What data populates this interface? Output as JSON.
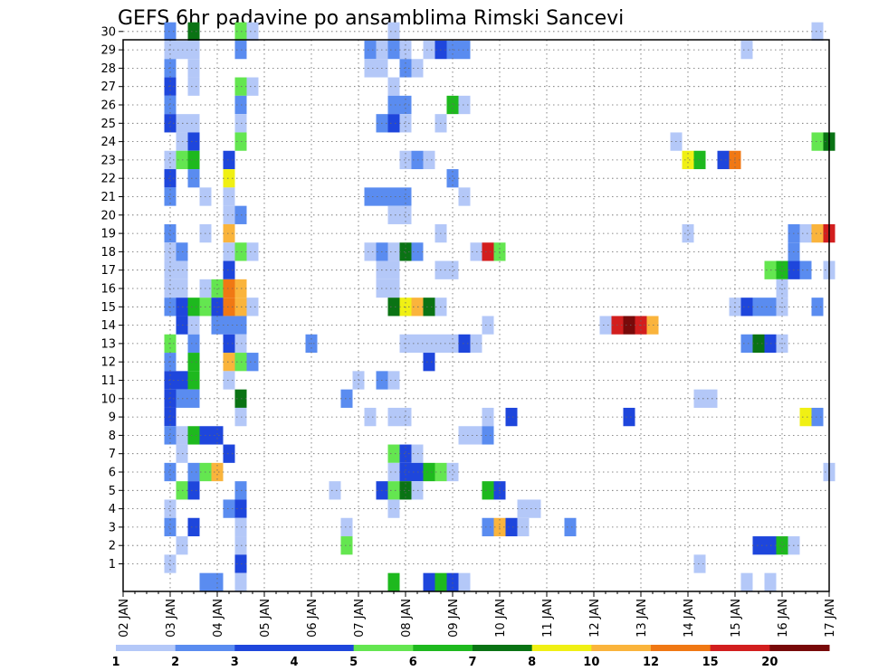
{
  "chart_data": {
    "type": "heatmap",
    "title": "GEFS 6hr padavine po ansamblima Rimski Sancevi",
    "x_tick_labels": [
      "02 JAN",
      "03 JAN",
      "04 JAN",
      "05 JAN",
      "06 JAN",
      "07 JAN",
      "08 JAN",
      "09 JAN",
      "10 JAN",
      "11 JAN",
      "12 JAN",
      "13 JAN",
      "14 JAN",
      "15 JAN",
      "16 JAN",
      "17 JAN"
    ],
    "y_tick_labels": [
      "1",
      "2",
      "3",
      "4",
      "5",
      "6",
      "7",
      "8",
      "9",
      "10",
      "11",
      "12",
      "13",
      "14",
      "15",
      "16",
      "17",
      "18",
      "19",
      "20",
      "21",
      "22",
      "23",
      "24",
      "25",
      "26",
      "27",
      "28",
      "29",
      "30"
    ],
    "y_range": [
      0,
      30
    ],
    "x_steps_per_day": 4,
    "n_steps": 60,
    "grid": true,
    "legend": {
      "position": "bottom",
      "labels": [
        "1",
        "2",
        "3",
        "4",
        "5",
        "6",
        "7",
        "8",
        "10",
        "12",
        "15",
        "20"
      ],
      "colors": [
        "#b4c8f8",
        "#5a8cf0",
        "#1e46dc",
        "#1e46dc",
        "#64e650",
        "#1eb91e",
        "#0a7314",
        "#f0f014",
        "#fab43c",
        "#f07814",
        "#d21e1e",
        "#780a0a"
      ]
    },
    "color_levels": {
      "1": "#b4c8f8",
      "2": "#5a8cf0",
      "3": "#1e46dc",
      "4": "#64e650",
      "5": "#1eb91e",
      "6": "#0a7314",
      "7": "#f0f014",
      "8": "#fab43c",
      "9": "#f07814",
      "10": "#d21e1e",
      "11": "#780a0a"
    },
    "cells": [
      [
        4,
        30,
        2
      ],
      [
        6,
        30,
        6
      ],
      [
        10,
        30,
        4
      ],
      [
        11,
        30,
        1
      ],
      [
        23,
        30,
        1
      ],
      [
        59,
        30,
        1
      ],
      [
        4,
        29,
        1
      ],
      [
        5,
        29,
        1
      ],
      [
        6,
        29,
        1
      ],
      [
        10,
        29,
        2
      ],
      [
        21,
        29,
        2
      ],
      [
        22,
        29,
        1
      ],
      [
        23,
        29,
        2
      ],
      [
        24,
        29,
        1
      ],
      [
        26,
        29,
        1
      ],
      [
        27,
        29,
        3
      ],
      [
        28,
        29,
        2
      ],
      [
        29,
        29,
        2
      ],
      [
        53,
        29,
        1
      ],
      [
        4,
        28,
        2
      ],
      [
        6,
        28,
        1
      ],
      [
        21,
        28,
        1
      ],
      [
        22,
        28,
        1
      ],
      [
        24,
        28,
        2
      ],
      [
        25,
        28,
        1
      ],
      [
        4,
        27,
        3
      ],
      [
        6,
        27,
        1
      ],
      [
        10,
        27,
        4
      ],
      [
        11,
        27,
        1
      ],
      [
        23,
        27,
        1
      ],
      [
        4,
        26,
        2
      ],
      [
        10,
        26,
        2
      ],
      [
        23,
        26,
        2
      ],
      [
        24,
        26,
        2
      ],
      [
        28,
        26,
        5
      ],
      [
        29,
        26,
        1
      ],
      [
        4,
        25,
        3
      ],
      [
        5,
        25,
        1
      ],
      [
        6,
        25,
        1
      ],
      [
        10,
        25,
        1
      ],
      [
        22,
        25,
        2
      ],
      [
        23,
        25,
        3
      ],
      [
        24,
        25,
        1
      ],
      [
        27,
        25,
        1
      ],
      [
        5,
        24,
        1
      ],
      [
        6,
        24,
        3
      ],
      [
        10,
        24,
        4
      ],
      [
        47,
        24,
        1
      ],
      [
        59,
        24,
        4
      ],
      [
        60,
        24,
        6
      ],
      [
        4,
        23,
        1
      ],
      [
        5,
        23,
        4
      ],
      [
        6,
        23,
        5
      ],
      [
        9,
        23,
        3
      ],
      [
        24,
        23,
        1
      ],
      [
        25,
        23,
        2
      ],
      [
        26,
        23,
        1
      ],
      [
        48,
        23,
        7
      ],
      [
        49,
        23,
        5
      ],
      [
        51,
        23,
        3
      ],
      [
        52,
        23,
        9
      ],
      [
        4,
        22,
        3
      ],
      [
        6,
        22,
        2
      ],
      [
        9,
        22,
        7
      ],
      [
        28,
        22,
        2
      ],
      [
        4,
        21,
        2
      ],
      [
        7,
        21,
        1
      ],
      [
        9,
        21,
        1
      ],
      [
        21,
        21,
        2
      ],
      [
        22,
        21,
        2
      ],
      [
        23,
        21,
        2
      ],
      [
        24,
        21,
        2
      ],
      [
        29,
        21,
        1
      ],
      [
        9,
        20,
        1
      ],
      [
        10,
        20,
        2
      ],
      [
        23,
        20,
        1
      ],
      [
        24,
        20,
        1
      ],
      [
        4,
        19,
        2
      ],
      [
        7,
        19,
        1
      ],
      [
        9,
        19,
        8
      ],
      [
        27,
        19,
        1
      ],
      [
        48,
        19,
        1
      ],
      [
        57,
        19,
        2
      ],
      [
        58,
        19,
        1
      ],
      [
        59,
        19,
        8
      ],
      [
        60,
        19,
        10
      ],
      [
        4,
        18,
        1
      ],
      [
        5,
        18,
        2
      ],
      [
        9,
        18,
        1
      ],
      [
        10,
        18,
        4
      ],
      [
        11,
        18,
        1
      ],
      [
        21,
        18,
        1
      ],
      [
        22,
        18,
        2
      ],
      [
        23,
        18,
        1
      ],
      [
        24,
        18,
        6
      ],
      [
        25,
        18,
        2
      ],
      [
        30,
        18,
        1
      ],
      [
        31,
        18,
        10
      ],
      [
        32,
        18,
        4
      ],
      [
        57,
        18,
        2
      ],
      [
        4,
        17,
        1
      ],
      [
        5,
        17,
        1
      ],
      [
        9,
        17,
        3
      ],
      [
        22,
        17,
        1
      ],
      [
        23,
        17,
        1
      ],
      [
        27,
        17,
        1
      ],
      [
        28,
        17,
        1
      ],
      [
        55,
        17,
        4
      ],
      [
        56,
        17,
        5
      ],
      [
        57,
        17,
        3
      ],
      [
        58,
        17,
        2
      ],
      [
        60,
        17,
        1
      ],
      [
        4,
        16,
        1
      ],
      [
        5,
        16,
        1
      ],
      [
        7,
        16,
        1
      ],
      [
        8,
        16,
        4
      ],
      [
        9,
        16,
        9
      ],
      [
        10,
        16,
        8
      ],
      [
        22,
        16,
        1
      ],
      [
        23,
        16,
        1
      ],
      [
        56,
        16,
        1
      ],
      [
        4,
        15,
        2
      ],
      [
        5,
        15,
        3
      ],
      [
        6,
        15,
        5
      ],
      [
        7,
        15,
        4
      ],
      [
        8,
        15,
        3
      ],
      [
        9,
        15,
        9
      ],
      [
        10,
        15,
        8
      ],
      [
        11,
        15,
        1
      ],
      [
        23,
        15,
        6
      ],
      [
        24,
        15,
        7
      ],
      [
        25,
        15,
        8
      ],
      [
        26,
        15,
        6
      ],
      [
        27,
        15,
        1
      ],
      [
        52,
        15,
        1
      ],
      [
        53,
        15,
        3
      ],
      [
        54,
        15,
        2
      ],
      [
        55,
        15,
        2
      ],
      [
        56,
        15,
        1
      ],
      [
        59,
        15,
        2
      ],
      [
        5,
        14,
        3
      ],
      [
        6,
        14,
        1
      ],
      [
        8,
        14,
        2
      ],
      [
        9,
        14,
        2
      ],
      [
        10,
        14,
        2
      ],
      [
        31,
        14,
        1
      ],
      [
        41,
        14,
        1
      ],
      [
        42,
        14,
        10
      ],
      [
        43,
        14,
        11
      ],
      [
        44,
        14,
        10
      ],
      [
        45,
        14,
        8
      ],
      [
        4,
        13,
        4
      ],
      [
        6,
        13,
        2
      ],
      [
        9,
        13,
        3
      ],
      [
        10,
        13,
        1
      ],
      [
        16,
        13,
        2
      ],
      [
        24,
        13,
        1
      ],
      [
        25,
        13,
        1
      ],
      [
        26,
        13,
        1
      ],
      [
        27,
        13,
        1
      ],
      [
        28,
        13,
        1
      ],
      [
        29,
        13,
        3
      ],
      [
        30,
        13,
        1
      ],
      [
        53,
        13,
        2
      ],
      [
        54,
        13,
        6
      ],
      [
        55,
        13,
        3
      ],
      [
        56,
        13,
        1
      ],
      [
        4,
        12,
        2
      ],
      [
        6,
        12,
        5
      ],
      [
        9,
        12,
        8
      ],
      [
        10,
        12,
        4
      ],
      [
        11,
        12,
        2
      ],
      [
        26,
        12,
        3
      ],
      [
        4,
        11,
        3
      ],
      [
        5,
        11,
        3
      ],
      [
        6,
        11,
        5
      ],
      [
        9,
        11,
        1
      ],
      [
        20,
        11,
        1
      ],
      [
        22,
        11,
        2
      ],
      [
        23,
        11,
        1
      ],
      [
        4,
        10,
        3
      ],
      [
        5,
        10,
        2
      ],
      [
        6,
        10,
        2
      ],
      [
        10,
        10,
        6
      ],
      [
        19,
        10,
        2
      ],
      [
        49,
        10,
        1
      ],
      [
        50,
        10,
        1
      ],
      [
        4,
        9,
        3
      ],
      [
        10,
        9,
        1
      ],
      [
        21,
        9,
        1
      ],
      [
        23,
        9,
        1
      ],
      [
        24,
        9,
        1
      ],
      [
        31,
        9,
        1
      ],
      [
        33,
        9,
        3
      ],
      [
        43,
        9,
        3
      ],
      [
        58,
        9,
        7
      ],
      [
        59,
        9,
        2
      ],
      [
        4,
        8,
        2
      ],
      [
        5,
        8,
        1
      ],
      [
        6,
        8,
        5
      ],
      [
        7,
        8,
        3
      ],
      [
        8,
        8,
        3
      ],
      [
        29,
        8,
        1
      ],
      [
        30,
        8,
        1
      ],
      [
        31,
        8,
        2
      ],
      [
        5,
        7,
        1
      ],
      [
        9,
        7,
        3
      ],
      [
        23,
        7,
        4
      ],
      [
        24,
        7,
        3
      ],
      [
        25,
        7,
        1
      ],
      [
        4,
        6,
        2
      ],
      [
        6,
        6,
        2
      ],
      [
        7,
        6,
        4
      ],
      [
        8,
        6,
        8
      ],
      [
        23,
        6,
        1
      ],
      [
        24,
        6,
        3
      ],
      [
        25,
        6,
        3
      ],
      [
        26,
        6,
        5
      ],
      [
        27,
        6,
        4
      ],
      [
        28,
        6,
        1
      ],
      [
        60,
        6,
        1
      ],
      [
        5,
        5,
        4
      ],
      [
        6,
        5,
        3
      ],
      [
        10,
        5,
        2
      ],
      [
        18,
        5,
        1
      ],
      [
        22,
        5,
        3
      ],
      [
        23,
        5,
        4
      ],
      [
        24,
        5,
        6
      ],
      [
        25,
        5,
        1
      ],
      [
        31,
        5,
        5
      ],
      [
        32,
        5,
        3
      ],
      [
        4,
        4,
        1
      ],
      [
        9,
        4,
        2
      ],
      [
        10,
        4,
        3
      ],
      [
        23,
        4,
        1
      ],
      [
        34,
        4,
        1
      ],
      [
        35,
        4,
        1
      ],
      [
        4,
        3,
        2
      ],
      [
        6,
        3,
        3
      ],
      [
        10,
        3,
        1
      ],
      [
        19,
        3,
        1
      ],
      [
        31,
        3,
        2
      ],
      [
        32,
        3,
        8
      ],
      [
        33,
        3,
        3
      ],
      [
        34,
        3,
        1
      ],
      [
        38,
        3,
        2
      ],
      [
        5,
        2,
        1
      ],
      [
        10,
        2,
        1
      ],
      [
        19,
        2,
        4
      ],
      [
        54,
        2,
        3
      ],
      [
        55,
        2,
        3
      ],
      [
        56,
        2,
        5
      ],
      [
        57,
        2,
        1
      ],
      [
        4,
        1,
        1
      ],
      [
        10,
        1,
        3
      ],
      [
        49,
        1,
        1
      ],
      [
        7,
        0,
        2
      ],
      [
        8,
        0,
        2
      ],
      [
        10,
        0,
        1
      ],
      [
        23,
        0,
        5
      ],
      [
        26,
        0,
        3
      ],
      [
        27,
        0,
        5
      ],
      [
        28,
        0,
        3
      ],
      [
        29,
        0,
        1
      ],
      [
        53,
        0,
        1
      ],
      [
        55,
        0,
        1
      ]
    ]
  }
}
